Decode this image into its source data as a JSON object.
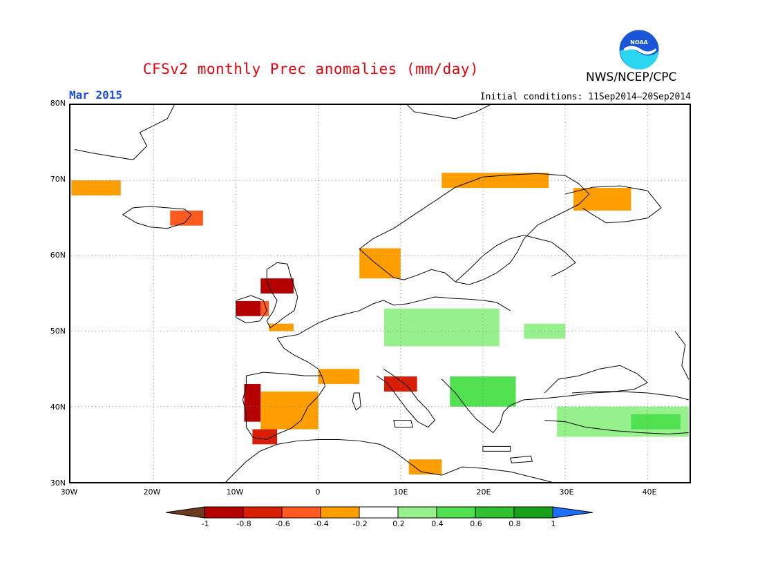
{
  "title": "CFSv2 monthly Prec anomalies (mm/day)",
  "agency": "NWS/NCEP/CPC",
  "month_label": "Mar 2015",
  "initial_conditions": "Initial conditions: 11Sep2014–20Sep2014",
  "logo_text": "NOAA",
  "y_axis_labels": [
    "80N",
    "70N",
    "60N",
    "50N",
    "40N",
    "30N"
  ],
  "x_axis_labels": [
    "30W",
    "20W",
    "10W",
    "0",
    "10E",
    "20E",
    "30E",
    "40E"
  ],
  "colorbar": {
    "tick_labels": [
      "-1",
      "-0.8",
      "-0.6",
      "-0.4",
      "-0.2",
      "0.2",
      "0.4",
      "0.6",
      "0.8",
      "1"
    ],
    "colors": [
      "#6b3a1f",
      "#b40000",
      "#d81e05",
      "#ff5a1f",
      "#ff9e00",
      "#ffffff",
      "#96f08c",
      "#50e050",
      "#30c030",
      "#18a018",
      "#1e6eff"
    ]
  },
  "map": {
    "extent": {
      "lon": [
        -30,
        45
      ],
      "lat": [
        30,
        80
      ]
    },
    "anomaly_regions": [
      {
        "name": "Greenland-East",
        "lon": [
          -30,
          -24
        ],
        "lat": [
          68,
          70
        ],
        "color": "#ff9e00"
      },
      {
        "name": "Iceland",
        "lon": [
          -18,
          -14
        ],
        "lat": [
          64,
          66
        ],
        "color": "#ff5a1f"
      },
      {
        "name": "Scotland",
        "lon": [
          -7,
          -3
        ],
        "lat": [
          55,
          57
        ],
        "color": "#b40000"
      },
      {
        "name": "Ireland",
        "lon": [
          -10,
          -7
        ],
        "lat": [
          52,
          54
        ],
        "color": "#b40000"
      },
      {
        "name": "Ireland-west",
        "lon": [
          -7,
          -6
        ],
        "lat": [
          52,
          54
        ],
        "color": "#ff5a1f"
      },
      {
        "name": "Wales-England",
        "lon": [
          -6,
          -3
        ],
        "lat": [
          50,
          51
        ],
        "color": "#ff9e00"
      },
      {
        "name": "Norway-SW",
        "lon": [
          5,
          10
        ],
        "lat": [
          57,
          61
        ],
        "color": "#ff9e00"
      },
      {
        "name": "N-Scandinavia",
        "lon": [
          15,
          28
        ],
        "lat": [
          69,
          71
        ],
        "color": "#ff9e00"
      },
      {
        "name": "Kola",
        "lon": [
          31,
          38
        ],
        "lat": [
          66,
          69
        ],
        "color": "#ff9e00"
      },
      {
        "name": "France-S",
        "lon": [
          0,
          5
        ],
        "lat": [
          43,
          45
        ],
        "color": "#ff9e00"
      },
      {
        "name": "Iberia-NW",
        "lon": [
          -9,
          -7
        ],
        "lat": [
          38,
          43
        ],
        "color": "#b40000"
      },
      {
        "name": "Iberia-C",
        "lon": [
          -7,
          0
        ],
        "lat": [
          37,
          42
        ],
        "color": "#ff9e00"
      },
      {
        "name": "Iberia-SW",
        "lon": [
          -8,
          -5
        ],
        "lat": [
          35,
          37
        ],
        "color": "#d81e05"
      },
      {
        "name": "Italy-N",
        "lon": [
          8,
          12
        ],
        "lat": [
          42,
          44
        ],
        "color": "#d81e05"
      },
      {
        "name": "Libya",
        "lon": [
          11,
          15
        ],
        "lat": [
          31,
          33
        ],
        "color": "#ff9e00"
      },
      {
        "name": "Germany-Poland",
        "lon": [
          8,
          22
        ],
        "lat": [
          48,
          53
        ],
        "color": "#96f08c"
      },
      {
        "name": "Ukraine",
        "lon": [
          25,
          30
        ],
        "lat": [
          49,
          51
        ],
        "color": "#96f08c"
      },
      {
        "name": "Balkans",
        "lon": [
          16,
          24
        ],
        "lat": [
          40,
          44
        ],
        "color": "#50e050"
      },
      {
        "name": "Anatolia",
        "lon": [
          29,
          45
        ],
        "lat": [
          36,
          40
        ],
        "color": "#96f08c"
      },
      {
        "name": "Turkey-SE",
        "lon": [
          38,
          44
        ],
        "lat": [
          37,
          39
        ],
        "color": "#50e050"
      }
    ]
  }
}
